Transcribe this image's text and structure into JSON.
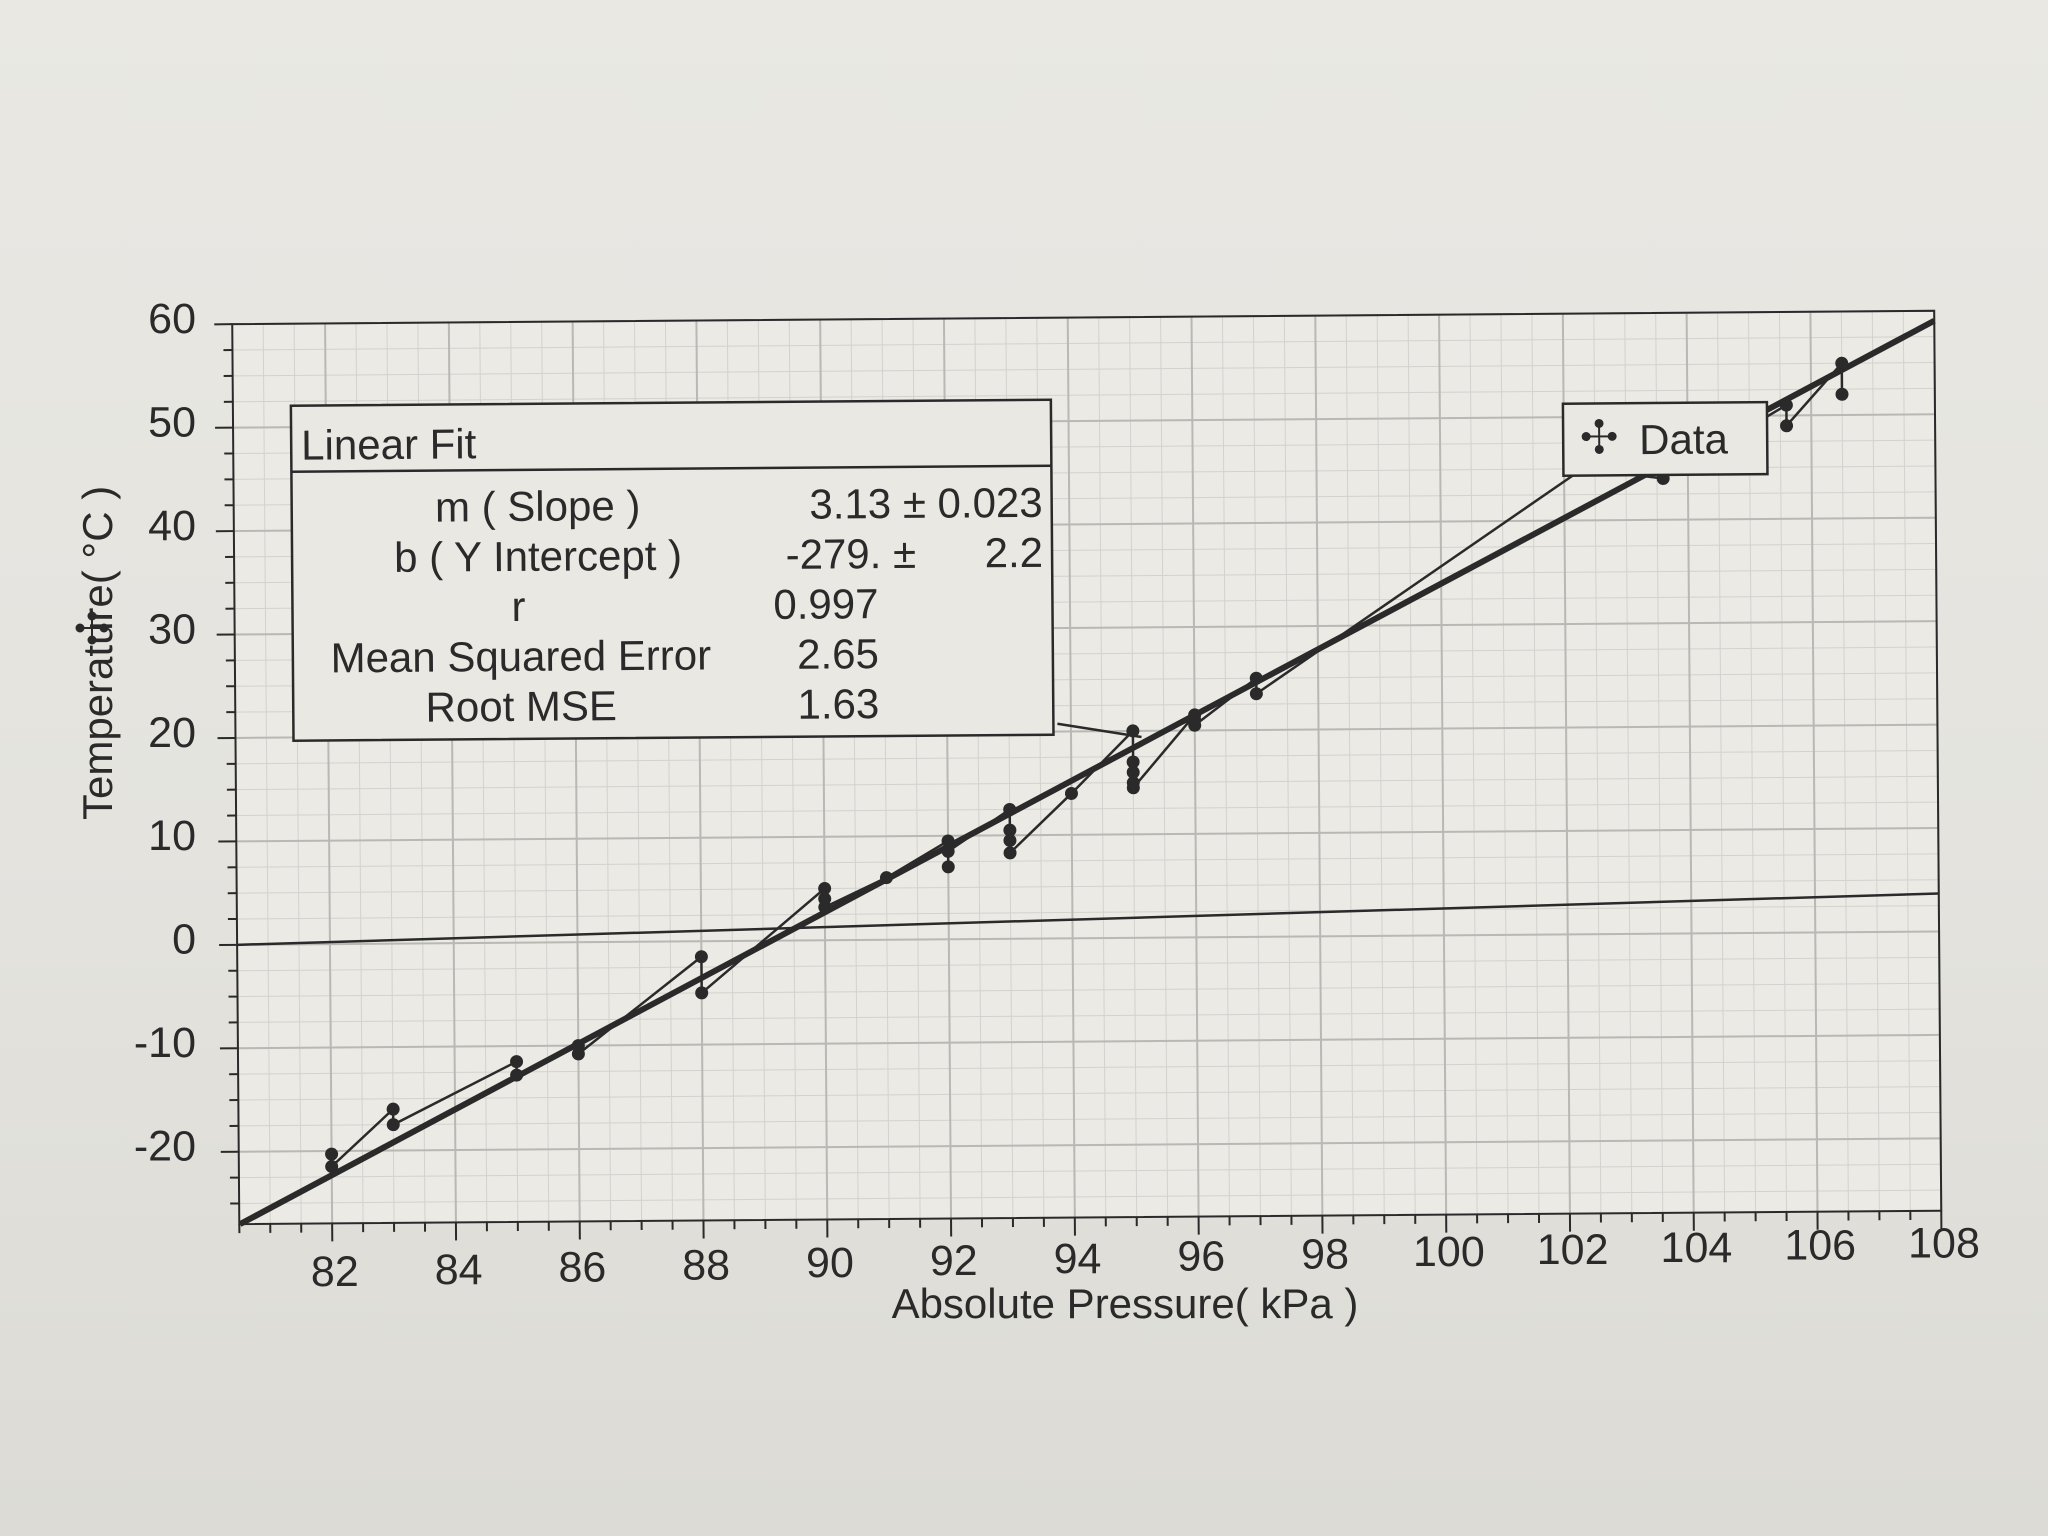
{
  "chart_data": {
    "type": "scatter",
    "xlabel": "Absolute Pressure( kPa )",
    "ylabel": "Temperature( °C )",
    "xlim": [
      80.5,
      108
    ],
    "ylim": [
      -27,
      60
    ],
    "xticks": [
      82,
      84,
      86,
      88,
      90,
      92,
      94,
      96,
      98,
      100,
      102,
      104,
      106,
      108
    ],
    "yticks": [
      60,
      50,
      40,
      30,
      20,
      10,
      0,
      -10,
      -20
    ],
    "xtick_labels": [
      "82",
      "84",
      "86",
      "88",
      "90",
      "92",
      "94",
      "96",
      "98",
      "100",
      "102",
      "104",
      "106",
      "108"
    ],
    "ytick_labels": [
      "60",
      "50",
      "40",
      "30",
      "20",
      "10",
      "0",
      "-10",
      "-20"
    ],
    "grid": true,
    "series": [
      {
        "name": "Data",
        "x": [
          82.0,
          82.0,
          83.0,
          83.0,
          85.0,
          85.0,
          86.0,
          86.0,
          88.0,
          88.0,
          90.0,
          90.0,
          90.0,
          91.0,
          92.0,
          92.0,
          92.0,
          93.0,
          93.0,
          93.0,
          93.0,
          94.0,
          95.0,
          95.0,
          95.0,
          95.0,
          95.0,
          96.0,
          96.0,
          96.0,
          97.0,
          97.0,
          102.3,
          103.6,
          105.6,
          105.6,
          106.5,
          106.5
        ],
        "y": [
          -20.3,
          -21.5,
          -16.0,
          -17.5,
          -11.5,
          -12.8,
          -10.0,
          -10.8,
          -1.5,
          -5.0,
          5.0,
          4.0,
          3.2,
          6.0,
          9.5,
          7.0,
          8.5,
          12.5,
          10.5,
          9.5,
          8.3,
          14.0,
          20.0,
          17.0,
          16.0,
          15.0,
          14.5,
          21.5,
          21.0,
          20.5,
          25.0,
          23.5,
          45.0,
          44.0,
          51.0,
          49.0,
          55.0,
          52.0
        ]
      }
    ],
    "fit": {
      "slope": 3.13,
      "intercept": -279
    },
    "legend": {
      "label": "Data",
      "placement": "top-right"
    }
  },
  "fit_box": {
    "title": "Linear Fit",
    "rows": [
      {
        "label": "m ( Slope )",
        "value": "3.13 ± 0.023"
      },
      {
        "label": "b ( Y Intercept )",
        "value": "-279. ±",
        "value2": "2.2"
      },
      {
        "label": "r",
        "value": "0.997"
      },
      {
        "label": "Mean Squared Error",
        "value": "2.65"
      },
      {
        "label": "Root MSE",
        "value": "1.63"
      }
    ]
  },
  "colors": {
    "ink": "#2a2a2a",
    "grid": "#b8b8b4",
    "grid_minor": "#d2d2ce",
    "paper": "#e6e5e0"
  }
}
